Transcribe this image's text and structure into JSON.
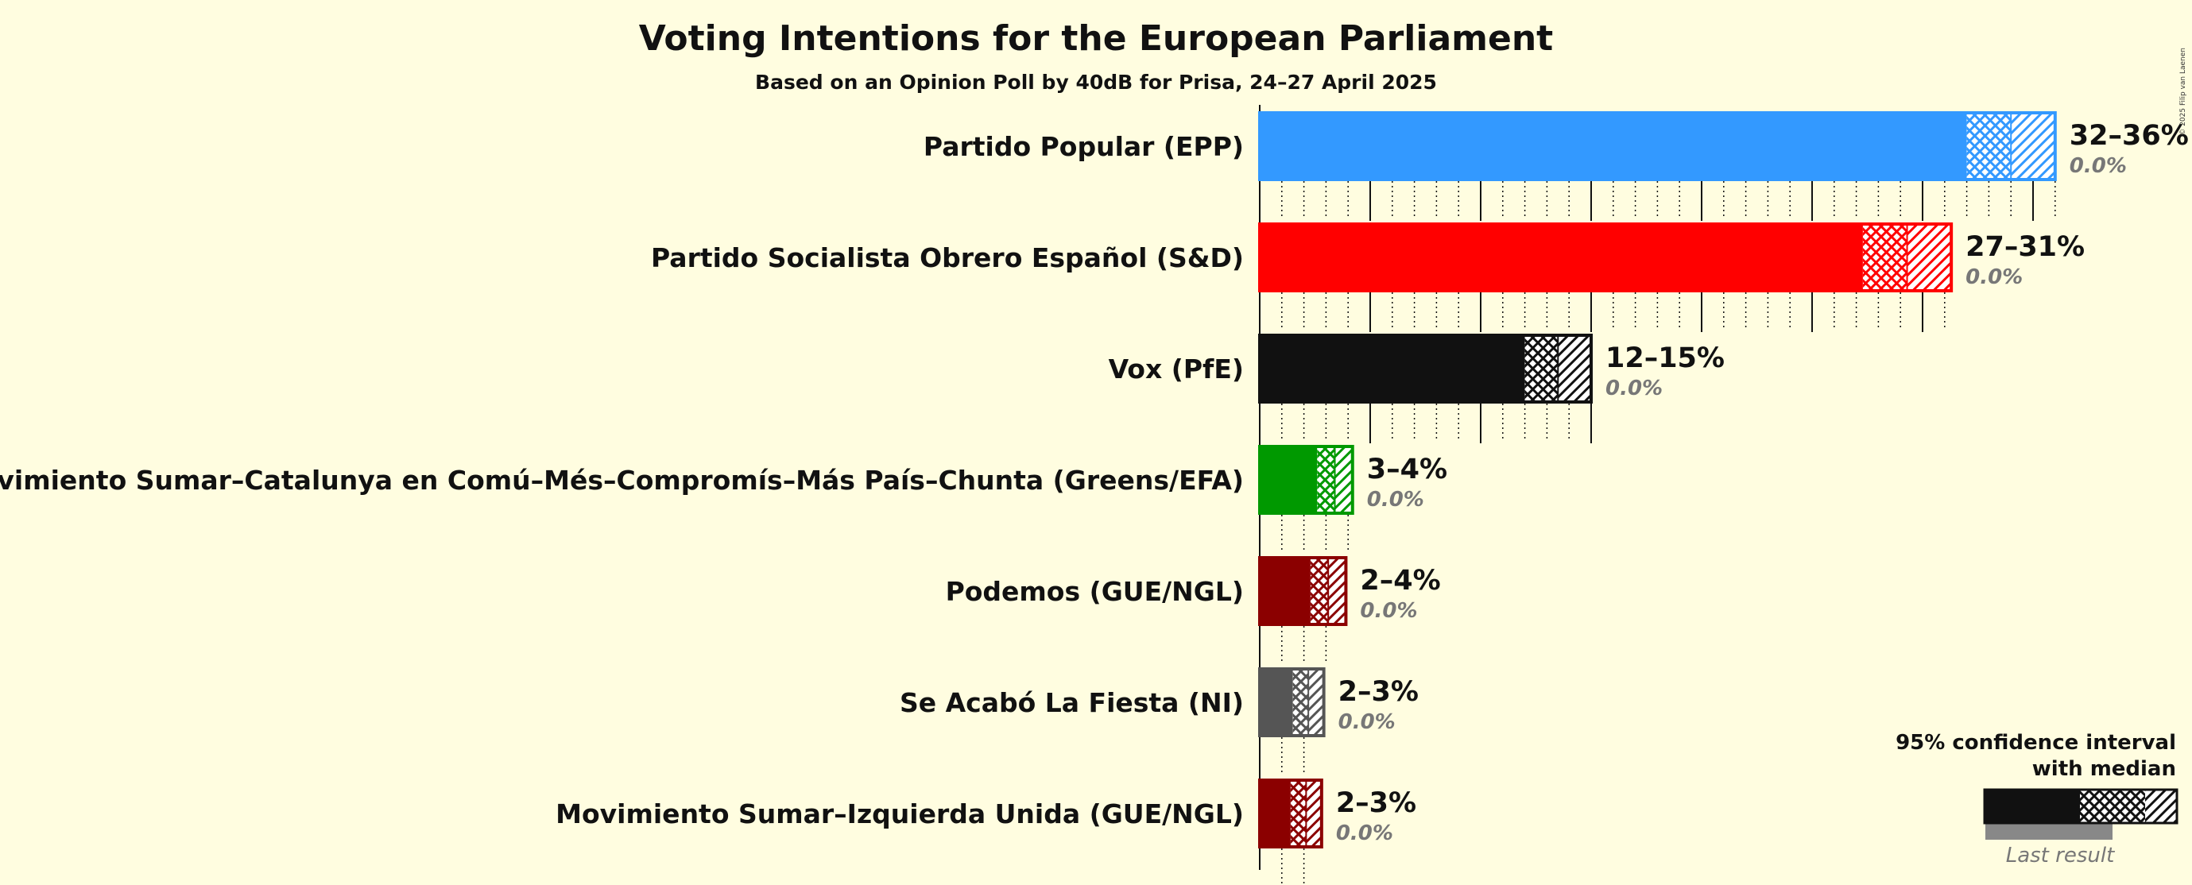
{
  "chart_data": {
    "type": "bar",
    "title": "Voting Intentions for the European Parliament",
    "subtitle": "Based on an Opinion Poll by 40dB for Prisa, 24–27 April 2025",
    "copyright": "© 2025 Filip van Laenen",
    "unit": "%",
    "x_max": 36,
    "series": [
      {
        "name": "Partido Popular (EPP)",
        "color": "#3399FF",
        "ci_low": 32,
        "median": 34,
        "ci_high": 36,
        "range_label": "32–36%",
        "last_result": 0.0,
        "last_label": "0.0%"
      },
      {
        "name": "Partido Socialista Obrero Español (S&D)",
        "color": "#FF0000",
        "ci_low": 27.3,
        "median": 29.3,
        "ci_high": 31.3,
        "range_label": "27–31%",
        "last_result": 0.0,
        "last_label": "0.0%"
      },
      {
        "name": "Vox (PfE)",
        "color": "#111111",
        "ci_low": 12,
        "median": 13.5,
        "ci_high": 15,
        "range_label": "12–15%",
        "last_result": 0.0,
        "last_label": "0.0%"
      },
      {
        "name": "Movimiento Sumar–Catalunya en Comú–Més–Compromís–Más País–Chunta (Greens/EFA)",
        "color": "#009900",
        "ci_low": 2.6,
        "median": 3.4,
        "ci_high": 4.2,
        "range_label": "3–4%",
        "last_result": 0.0,
        "last_label": "0.0%"
      },
      {
        "name": "Podemos (GUE/NGL)",
        "color": "#8B0000",
        "ci_low": 2.3,
        "median": 3.1,
        "ci_high": 3.9,
        "range_label": "2–4%",
        "last_result": 0.0,
        "last_label": "0.0%"
      },
      {
        "name": "Se Acabó La Fiesta (NI)",
        "color": "#555555",
        "ci_low": 1.5,
        "median": 2.2,
        "ci_high": 2.9,
        "range_label": "2–3%",
        "last_result": 0.0,
        "last_label": "0.0%"
      },
      {
        "name": "Movimiento Sumar–Izquierda Unida (GUE/NGL)",
        "color": "#8B0000",
        "ci_low": 1.4,
        "median": 2.1,
        "ci_high": 2.8,
        "range_label": "2–3%",
        "last_result": 0.0,
        "last_label": "0.0%"
      }
    ],
    "legend": {
      "title_line1": "95% confidence interval",
      "title_line2": "with median",
      "last_result_label": "Last result",
      "position": "bottom-right"
    }
  }
}
